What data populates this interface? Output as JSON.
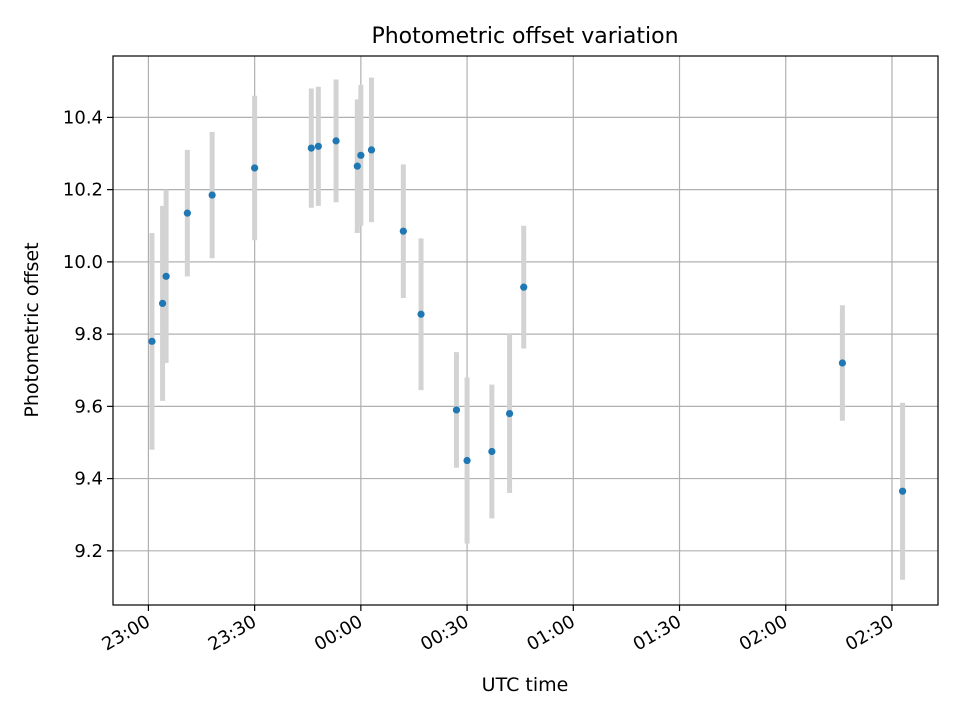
{
  "chart_data": {
    "type": "scatter",
    "title": "Photometric offset variation",
    "xlabel": "UTC time",
    "ylabel": "Photometric offset",
    "x_tick_labels": [
      "23:00",
      "23:30",
      "00:00",
      "00:30",
      "01:00",
      "01:30",
      "02:00",
      "02:30"
    ],
    "y_tick_labels": [
      "9.2",
      "9.4",
      "9.6",
      "9.8",
      "10.0",
      "10.2",
      "10.4"
    ],
    "y_ticks": [
      9.2,
      9.4,
      9.6,
      9.8,
      10.0,
      10.2,
      10.4
    ],
    "ylim": [
      9.05,
      10.57
    ],
    "xlim_minutes_from_2300": [
      -10,
      223
    ],
    "grid": true,
    "marker_color": "#1f77b4",
    "errorbar_color": "#d3d3d3",
    "x": [
      "23:01",
      "23:04",
      "23:05",
      "23:11",
      "23:18",
      "23:30",
      "23:46",
      "23:48",
      "23:53",
      "23:59",
      "24:00",
      "24:03",
      "24:12",
      "24:17",
      "24:27",
      "24:30",
      "24:37",
      "24:42",
      "24:46",
      "26:16",
      "26:33"
    ],
    "y": [
      9.78,
      9.885,
      9.96,
      10.135,
      10.185,
      10.26,
      10.315,
      10.32,
      10.335,
      10.265,
      10.295,
      10.31,
      10.085,
      9.855,
      9.59,
      9.45,
      9.475,
      9.58,
      9.93,
      9.72,
      9.365
    ],
    "yerr": [
      0.3,
      0.27,
      0.24,
      0.175,
      0.175,
      0.2,
      0.165,
      0.165,
      0.17,
      0.185,
      0.195,
      0.2,
      0.185,
      0.21,
      0.16,
      0.23,
      0.185,
      0.22,
      0.17,
      0.16,
      0.245
    ]
  }
}
